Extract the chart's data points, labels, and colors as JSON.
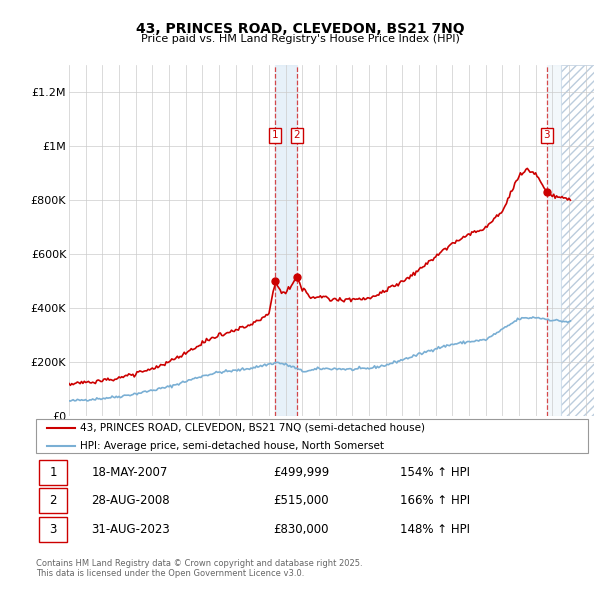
{
  "title": "43, PRINCES ROAD, CLEVEDON, BS21 7NQ",
  "subtitle": "Price paid vs. HM Land Registry's House Price Index (HPI)",
  "legend_line1": "43, PRINCES ROAD, CLEVEDON, BS21 7NQ (semi-detached house)",
  "legend_line2": "HPI: Average price, semi-detached house, North Somerset",
  "footer1": "Contains HM Land Registry data © Crown copyright and database right 2025.",
  "footer2": "This data is licensed under the Open Government Licence v3.0.",
  "sale_events": [
    {
      "num": 1,
      "date": "18-MAY-2007",
      "price": "£499,999",
      "hpi": "154% ↑ HPI",
      "year": 2007.38,
      "price_val": 499999
    },
    {
      "num": 2,
      "date": "28-AUG-2008",
      "price": "£515,000",
      "hpi": "166% ↑ HPI",
      "year": 2008.66,
      "price_val": 515000
    },
    {
      "num": 3,
      "date": "31-AUG-2023",
      "price": "£830,000",
      "hpi": "148% ↑ HPI",
      "year": 2023.66,
      "price_val": 830000
    }
  ],
  "red_line_color": "#cc0000",
  "blue_line_color": "#7aafd4",
  "dot_color": "#cc0000",
  "background_color": "#ffffff",
  "grid_color": "#cccccc",
  "shade_color_mid": "#d8e8f5",
  "xlim": [
    1995,
    2026.5
  ],
  "ylim": [
    0,
    1300000
  ],
  "yticks": [
    0,
    200000,
    400000,
    600000,
    800000,
    1000000,
    1200000
  ],
  "ytick_labels": [
    "£0",
    "£200K",
    "£400K",
    "£600K",
    "£800K",
    "£1M",
    "£1.2M"
  ],
  "xticks": [
    1995,
    1996,
    1997,
    1998,
    1999,
    2000,
    2001,
    2002,
    2003,
    2004,
    2005,
    2006,
    2007,
    2008,
    2009,
    2010,
    2011,
    2012,
    2013,
    2014,
    2015,
    2016,
    2017,
    2018,
    2019,
    2020,
    2021,
    2022,
    2023,
    2024,
    2025,
    2026
  ],
  "hpi_seed": 42,
  "hatch_start": 2024.5
}
